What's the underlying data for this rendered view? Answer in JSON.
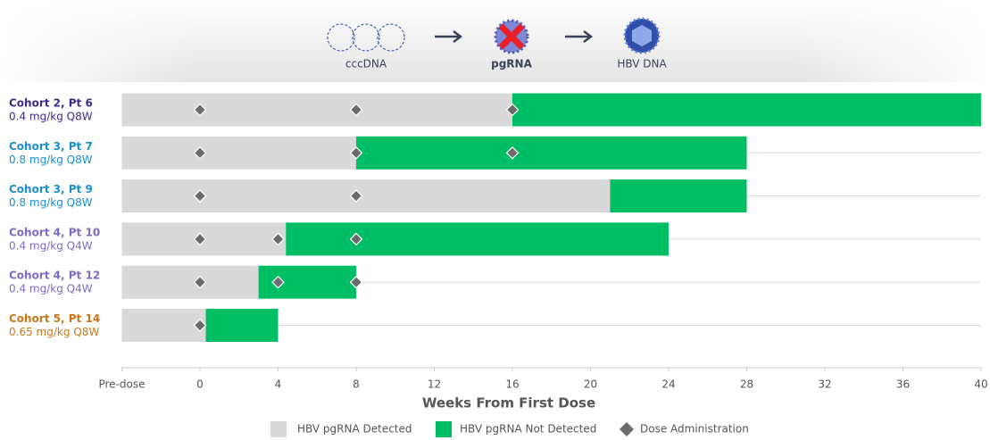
{
  "header": {
    "steps": [
      "cccDNA",
      "pgRNA",
      "HBV DNA"
    ]
  },
  "chart_data": {
    "type": "swimmer",
    "rows": [
      {
        "label": "Cohort 2, Pt 6",
        "dose": "0.4 mg/kg Q8W",
        "color": "#3d2b8c"
      },
      {
        "label": "Cohort 3, Pt 7",
        "dose": "0.8 mg/kg Q8W",
        "color": "#1a8fd0"
      },
      {
        "label": "Cohort 3, Pt 9",
        "dose": "0.8 mg/kg Q8W",
        "color": "#1a8fd0"
      },
      {
        "label": "Cohort 4, Pt 10",
        "dose": "0.4 mg/kg Q4W",
        "color": "#7c6cc6"
      },
      {
        "label": "Cohort 4, Pt 12",
        "dose": "0.4 mg/kg Q4W",
        "color": "#7c6cc6"
      },
      {
        "label": "Cohort 5, Pt 14",
        "dose": "0.65 mg/kg Q8W",
        "color": "#c8781a"
      }
    ],
    "series": [
      {
        "name": "HBV pgRNA Detected",
        "color": "#d9d9d9",
        "values": [
          16,
          8,
          21,
          4.4,
          3,
          0.3
        ]
      },
      {
        "name": "HBV pgRNA Not Detected",
        "color": "#00be64",
        "values": [
          40,
          28,
          28,
          24,
          8,
          4
        ]
      }
    ],
    "doses": {
      "name": "Dose Administration",
      "color": "#6b6b6b",
      "values": [
        [
          0,
          8,
          16
        ],
        [
          0,
          8,
          16
        ],
        [
          0,
          8
        ],
        [
          0,
          4,
          8
        ],
        [
          0,
          4,
          8
        ],
        [
          0
        ]
      ]
    },
    "xlim": [
      -4,
      40
    ],
    "xticks": [
      {
        "value": -4,
        "label": "Pre-dose"
      },
      0,
      4,
      8,
      12,
      16,
      20,
      24,
      28,
      32,
      36,
      40
    ],
    "xlabel": "Weeks From First Dose"
  }
}
